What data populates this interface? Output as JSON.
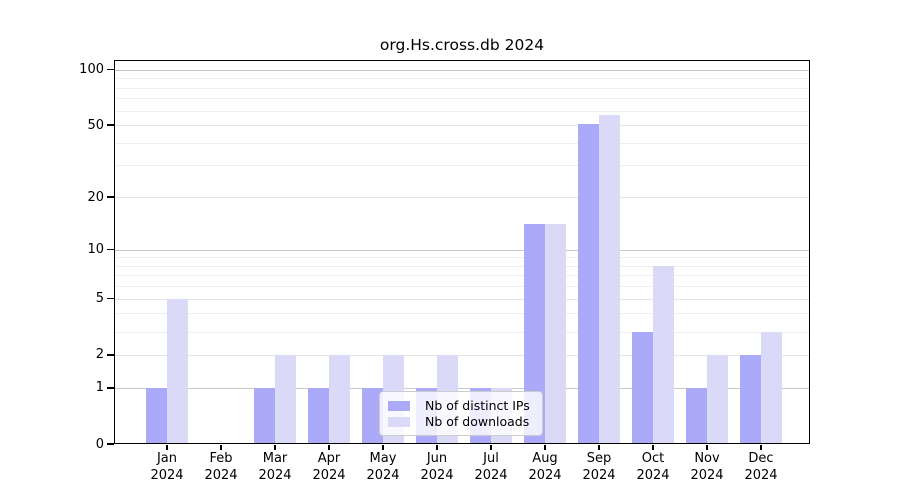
{
  "chart_data": {
    "type": "bar",
    "title": "org.Hs.cross.db 2024",
    "x_tick_labels": [
      {
        "line1": "Jan",
        "line2": "2024"
      },
      {
        "line1": "Feb",
        "line2": "2024"
      },
      {
        "line1": "Mar",
        "line2": "2024"
      },
      {
        "line1": "Apr",
        "line2": "2024"
      },
      {
        "line1": "May",
        "line2": "2024"
      },
      {
        "line1": "Jun",
        "line2": "2024"
      },
      {
        "line1": "Jul",
        "line2": "2024"
      },
      {
        "line1": "Aug",
        "line2": "2024"
      },
      {
        "line1": "Sep",
        "line2": "2024"
      },
      {
        "line1": "Oct",
        "line2": "2024"
      },
      {
        "line1": "Nov",
        "line2": "2024"
      },
      {
        "line1": "Dec",
        "line2": "2024"
      }
    ],
    "series": [
      {
        "name": "Nb of distinct IPs",
        "color": "#abaaf8",
        "values": [
          1,
          0,
          1,
          1,
          1,
          1,
          1,
          14,
          51,
          3,
          1,
          2
        ]
      },
      {
        "name": "Nb of downloads",
        "color": "#dadaf8",
        "values": [
          5,
          0,
          2,
          2,
          2,
          2,
          1,
          14,
          57,
          8,
          2,
          3
        ]
      }
    ],
    "yticks": [
      0,
      1,
      2,
      5,
      10,
      20,
      50,
      100
    ],
    "major_gridlines": [
      1,
      10,
      100
    ],
    "mid_gridlines": [
      2,
      5,
      20,
      50
    ],
    "minor_gridlines": [
      3,
      4,
      6,
      7,
      8,
      9,
      30,
      40,
      60,
      70,
      80,
      90
    ],
    "scale": "log1p",
    "ylim": [
      0,
      113
    ],
    "grid": true,
    "legend_position": "lower-center-inside",
    "colors": {
      "major_grid": "#c8c8c8",
      "mid_grid": "#e4e4e4",
      "minor_grid": "#efefef",
      "axis": "#000000",
      "legend_border": "#cccccc"
    }
  }
}
